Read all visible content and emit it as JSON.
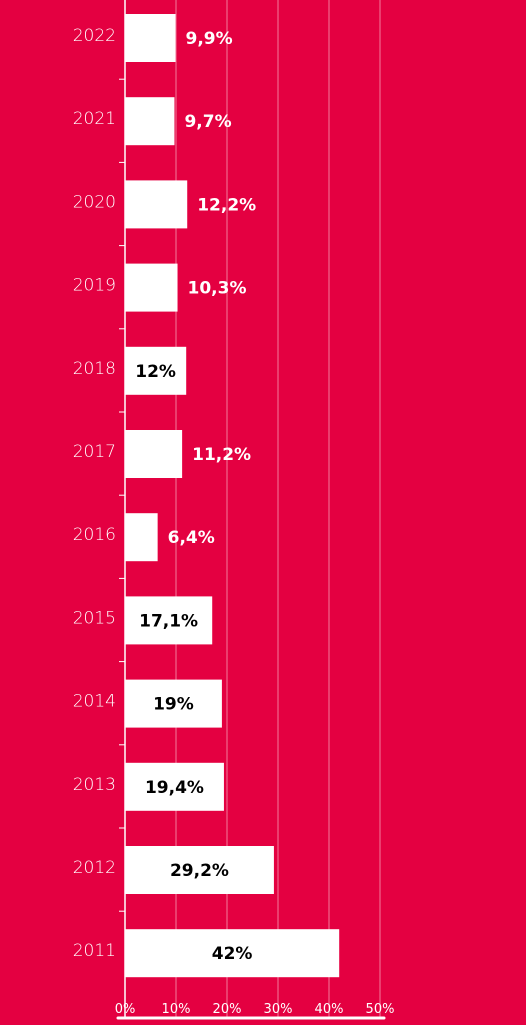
{
  "chart_data": {
    "type": "bar",
    "orientation": "horizontal",
    "categories": [
      "2022",
      "2021",
      "2020",
      "2019",
      "2018",
      "2017",
      "2016",
      "2015",
      "2014",
      "2013",
      "2012",
      "2011"
    ],
    "values": [
      9.9,
      9.7,
      12.2,
      10.3,
      12,
      11.2,
      6.4,
      17.1,
      19,
      19.4,
      29.2,
      42
    ],
    "data_labels": [
      "9,9%",
      "9,7%",
      "12,2%",
      "10,3%",
      "12%",
      "11,2%",
      "6,4%",
      "17,1%",
      "19%",
      "19,4%",
      "29,2%",
      "42%"
    ],
    "x_ticks": [
      "0%",
      "10%",
      "20%",
      "30%",
      "40%",
      "50%"
    ],
    "xlim": [
      0,
      50
    ],
    "grid": true,
    "title": "",
    "xlabel": "",
    "ylabel": "",
    "colors": {
      "background": "#E40041",
      "bar": "#FFFFFF",
      "gridline": "#F27A9A",
      "label_on_bar": "#000000",
      "label_outside": "#FFFFFF"
    }
  }
}
